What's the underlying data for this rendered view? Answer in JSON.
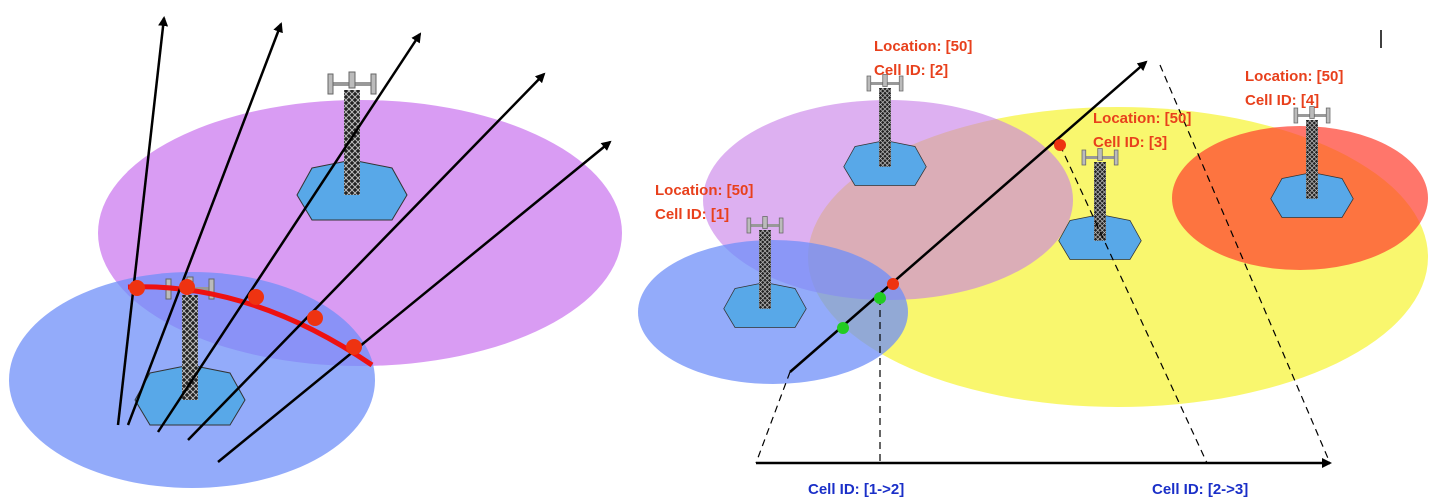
{
  "cells": [
    {
      "location": "Location: [50]",
      "cell_id": "Cell ID: [1]"
    },
    {
      "location": "Location: [50]",
      "cell_id": "Cell ID: [2]"
    },
    {
      "location": "Location: [50]",
      "cell_id": "Cell ID: [3]"
    },
    {
      "location": "Location: [50]",
      "cell_id": "Cell ID: [4]"
    }
  ],
  "transitions": [
    "Cell ID: [1->2]",
    "Cell ID: [2->3]"
  ]
}
